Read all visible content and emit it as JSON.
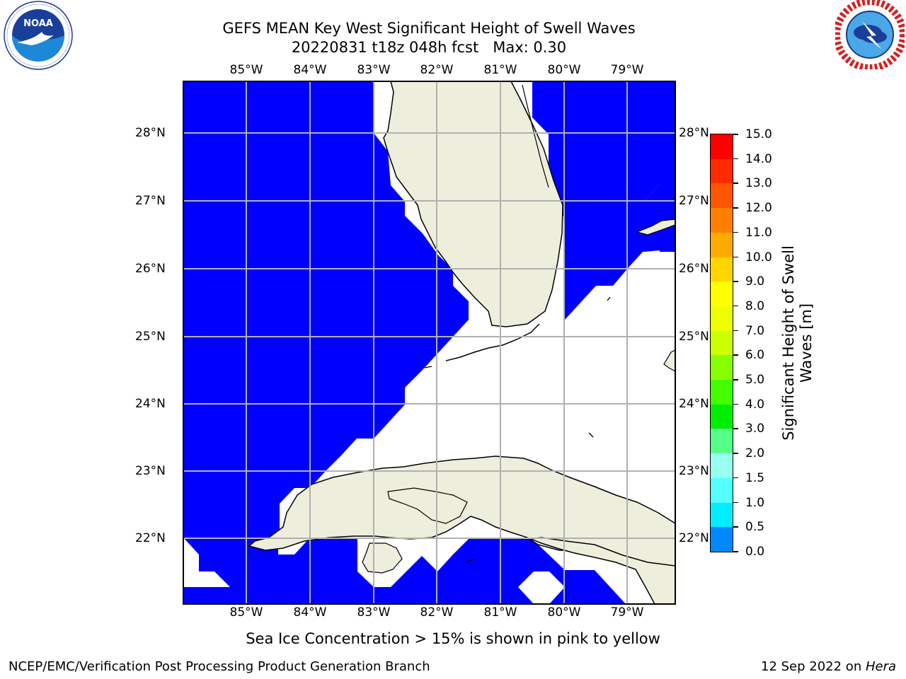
{
  "title": {
    "line1": "GEFS MEAN Key West Significant Height of Swell Waves",
    "line2": "20220831 t18z 048h fcst   Max: 0.30"
  },
  "logos": {
    "noaa": {
      "text": "NOAA",
      "ring_text": "NATIONAL OCEANIC AND ATMOSPHERIC ADMINISTRATION · U.S. DEPARTMENT OF COMMERCE"
    },
    "nws": {
      "ring_text": "NATIONAL WEATHER SERVICE"
    }
  },
  "map": {
    "lon_labels": [
      "85°W",
      "84°W",
      "83°W",
      "82°W",
      "81°W",
      "80°W",
      "79°W"
    ],
    "lat_labels": [
      "28°N",
      "27°N",
      "26°N",
      "25°N",
      "24°N",
      "23°N",
      "22°N"
    ],
    "colors": {
      "water_value": "#0000ff",
      "land": "#eeeedd",
      "grid": "#b0b0b0",
      "coast": "#000000",
      "no_data": "#ffffff"
    }
  },
  "colorbar": {
    "label_line1": "Significant Height of Swell",
    "label_line2": "Waves [m]",
    "ticks": [
      "15.0",
      "14.0",
      "13.0",
      "12.0",
      "11.0",
      "10.0",
      "9.0",
      "8.0",
      "7.0",
      "6.0",
      "5.0",
      "4.0",
      "3.0",
      "2.0",
      "1.5",
      "1.0",
      "0.5",
      "0.0"
    ],
    "colors": [
      "#ff0000",
      "#ff2a00",
      "#ff5500",
      "#ff8000",
      "#ffaa00",
      "#ffd500",
      "#ffff00",
      "#eeff00",
      "#ccff00",
      "#88ff00",
      "#44ff00",
      "#00ee00",
      "#55ff88",
      "#99ffee",
      "#55ffff",
      "#00eeff",
      "#0088ff",
      "#0000ff"
    ]
  },
  "note": "Sea Ice Concentration > 15% is shown in pink to yellow",
  "footer": {
    "left": "NCEP/EMC/Verification Post Processing Product Generation Branch",
    "right_prefix": "12 Sep 2022 on ",
    "right_host": "Hera"
  }
}
